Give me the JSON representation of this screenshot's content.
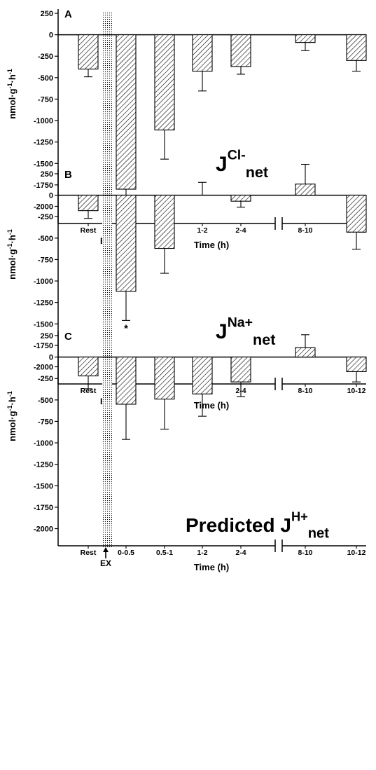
{
  "figure": {
    "ex_label": "EX",
    "ex_marker": "up-arrow-icon"
  },
  "chart_data": [
    {
      "type": "bar",
      "panel": "A",
      "annotation": "J^Cl-_net",
      "annotation_parts": {
        "base": "J",
        "sup": "Cl-",
        "sub": "net"
      },
      "categories": [
        "Rest",
        "0-0.5",
        "0.5-1",
        "1-2",
        "2-4",
        "8-10",
        "10-12"
      ],
      "values": [
        -400,
        -1800,
        -1110,
        -425,
        -370,
        -90,
        -300
      ],
      "errors": [
        90,
        230,
        340,
        230,
        90,
        95,
        125
      ],
      "significant": [
        "0-0.5"
      ],
      "significance_marker": "*",
      "xlabel": "Time (h)",
      "ylabel": "nmol·g-1·h-1",
      "ylim": [
        -2200,
        250
      ],
      "yticks": [
        250,
        0,
        -250,
        -500,
        -750,
        -1000,
        -1250,
        -1500,
        -1750,
        -2000
      ],
      "axis_break": true,
      "grid": false
    },
    {
      "type": "bar",
      "panel": "B",
      "annotation": "J^Na+_net",
      "annotation_parts": {
        "base": "J",
        "sup": "Na+",
        "sub": "net"
      },
      "categories": [
        "Rest",
        "0-0.5",
        "0.5-1",
        "1-2",
        "2-4",
        "8-10",
        "10-12"
      ],
      "values": [
        -180,
        -1120,
        -620,
        0,
        -70,
        130,
        -430
      ],
      "errors": [
        90,
        340,
        290,
        150,
        70,
        230,
        200
      ],
      "significant": [
        "0-0.5"
      ],
      "significance_marker": "*",
      "xlabel": "Time (h)",
      "ylabel": "nmol·g-1·h-1",
      "ylim": [
        -2200,
        250
      ],
      "yticks": [
        250,
        0,
        -250,
        -500,
        -750,
        -1000,
        -1250,
        -1500,
        -1750,
        -2000
      ],
      "axis_break": true,
      "grid": false
    },
    {
      "type": "bar",
      "panel": "C",
      "annotation": "Predicted J^H+_net",
      "annotation_parts": {
        "base": "Predicted J",
        "sup": "H+",
        "sub": "net"
      },
      "categories": [
        "Rest",
        "0-0.5",
        "0.5-1",
        "1-2",
        "2-4",
        "8-10",
        "10-12"
      ],
      "values": [
        -220,
        -550,
        -490,
        -430,
        -290,
        110,
        -170
      ],
      "errors": [
        150,
        410,
        350,
        260,
        170,
        150,
        120
      ],
      "significant": [],
      "significance_marker": "*",
      "xlabel": "Time (h)",
      "ylabel": "nmol·g-1·h-1",
      "ylim": [
        -2200,
        250
      ],
      "yticks": [
        250,
        0,
        -250,
        -500,
        -750,
        -1000,
        -1250,
        -1500,
        -1750,
        -2000
      ],
      "axis_break": true,
      "grid": false
    }
  ]
}
